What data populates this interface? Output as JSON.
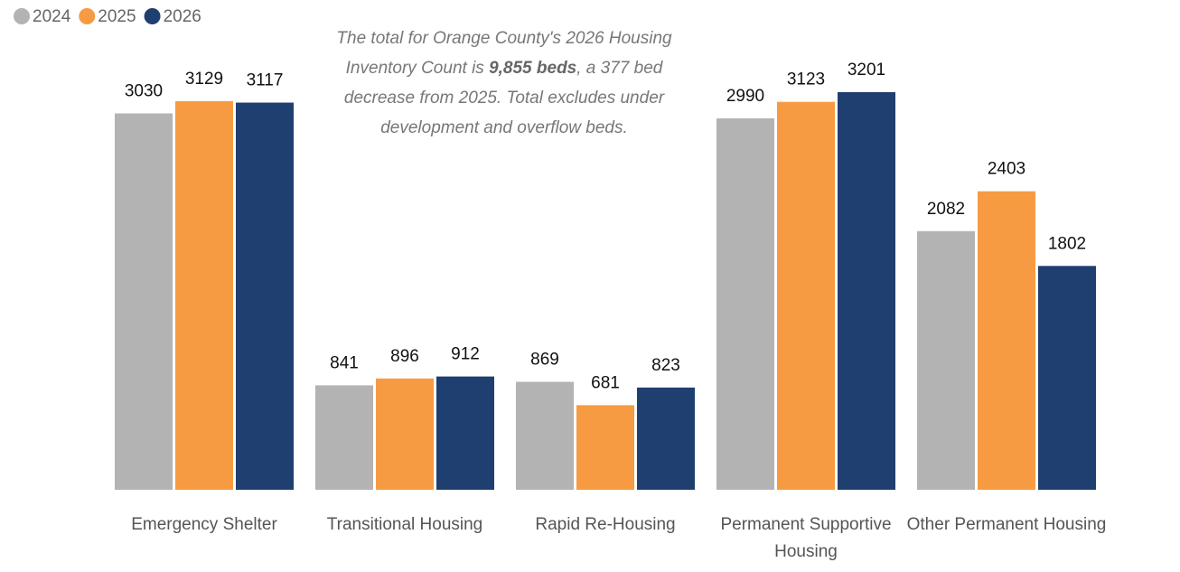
{
  "chart_data": {
    "type": "bar",
    "annotation": {
      "before": "The total for Orange County's 2026 Housing Inventory Count is ",
      "emphasis": "9,855 beds",
      "after": ", a 377 bed decrease from 2025. Total excludes under development and overflow beds."
    },
    "categories": [
      "Emergency Shelter",
      "Transitional Housing",
      "Rapid Re-Housing",
      "Permanent Supportive Housing",
      "Other Permanent Housing"
    ],
    "series": [
      {
        "name": "2024",
        "color": "#b3b3b3",
        "values": [
          3030,
          841,
          869,
          2990,
          2082
        ]
      },
      {
        "name": "2025",
        "color": "#f79b42",
        "values": [
          3129,
          896,
          681,
          3123,
          2403
        ]
      },
      {
        "name": "2026",
        "color": "#1f3f70",
        "values": [
          3117,
          912,
          823,
          3201,
          1802
        ]
      }
    ],
    "legend": "top-left"
  }
}
